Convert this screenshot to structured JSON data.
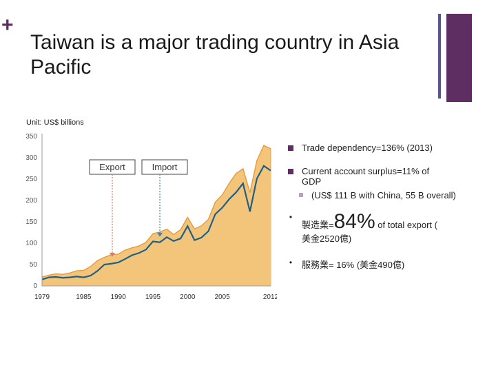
{
  "slide": {
    "plus": "+",
    "title": "Taiwan is a major trading country in Asia Pacific",
    "unit": "Unit: US$ billions",
    "accent": "#5e2e63",
    "accent2": "#5a5590"
  },
  "bullets": {
    "b1": "Trade dependency=136% (2013)",
    "b2": "Current account surplus=11% of GDP",
    "b3": "(US$ 111 B with China, 55 B overall)",
    "b4_prefix": "製造業=",
    "b4_big": "84%",
    "b4_suffix": " of total export (",
    "b4_line2": "美金2520億)",
    "b5": "服務業= 16% (美金490億)"
  },
  "chart_data": {
    "type": "area",
    "x": [
      1979,
      1980,
      1981,
      1982,
      1983,
      1984,
      1985,
      1986,
      1987,
      1988,
      1989,
      1990,
      1991,
      1992,
      1993,
      1994,
      1995,
      1996,
      1997,
      1998,
      1999,
      2000,
      2001,
      2002,
      2003,
      2004,
      2005,
      2006,
      2007,
      2008,
      2009,
      2010,
      2011,
      2012
    ],
    "series": [
      {
        "name": "Export",
        "color": "#3aa7b3",
        "values": [
          16,
          20,
          23,
          22,
          25,
          30,
          31,
          40,
          53,
          60,
          66,
          67,
          76,
          81,
          85,
          93,
          112,
          116,
          122,
          110,
          121,
          148,
          123,
          130,
          144,
          182,
          198,
          224,
          246,
          256,
          204,
          274,
          308,
          301
        ]
      },
      {
        "name": "Import",
        "color": "#f2c57a",
        "values": [
          15,
          20,
          21,
          19,
          20,
          22,
          20,
          24,
          35,
          50,
          52,
          55,
          63,
          72,
          77,
          85,
          104,
          102,
          114,
          105,
          111,
          140,
          107,
          113,
          128,
          168,
          183,
          203,
          219,
          240,
          174,
          251,
          281,
          270
        ]
      }
    ],
    "ylim": [
      0,
      350
    ],
    "yticks": [
      0,
      50,
      100,
      150,
      200,
      250,
      300,
      350
    ],
    "xticks": [
      1979,
      1985,
      1990,
      1995,
      2000,
      2005,
      2012
    ],
    "annotations": [
      {
        "label": "Export",
        "target_year": 1990
      },
      {
        "label": "Import",
        "target_year": 1996
      }
    ]
  }
}
